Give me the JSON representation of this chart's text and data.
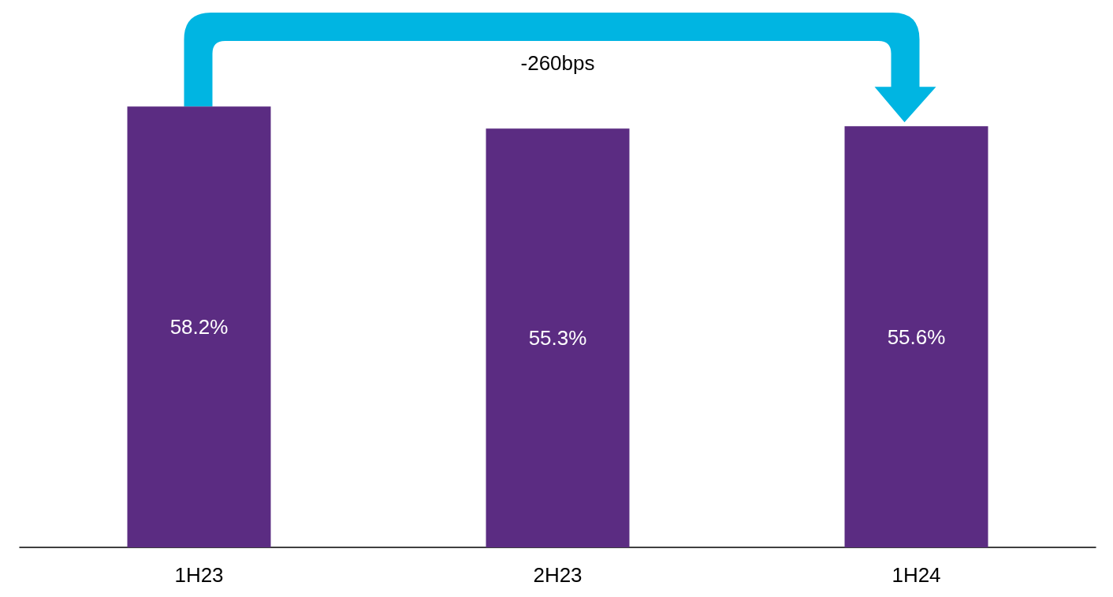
{
  "chart_data": {
    "type": "bar",
    "categories": [
      "1H23",
      "2H23",
      "1H24"
    ],
    "values": [
      58.2,
      55.3,
      55.6
    ],
    "value_labels": [
      "58.2%",
      "55.3%",
      "55.6%"
    ],
    "color": "#5b2c82",
    "tick_labels": "x",
    "annotations": [
      "-260bps"
    ]
  }
}
